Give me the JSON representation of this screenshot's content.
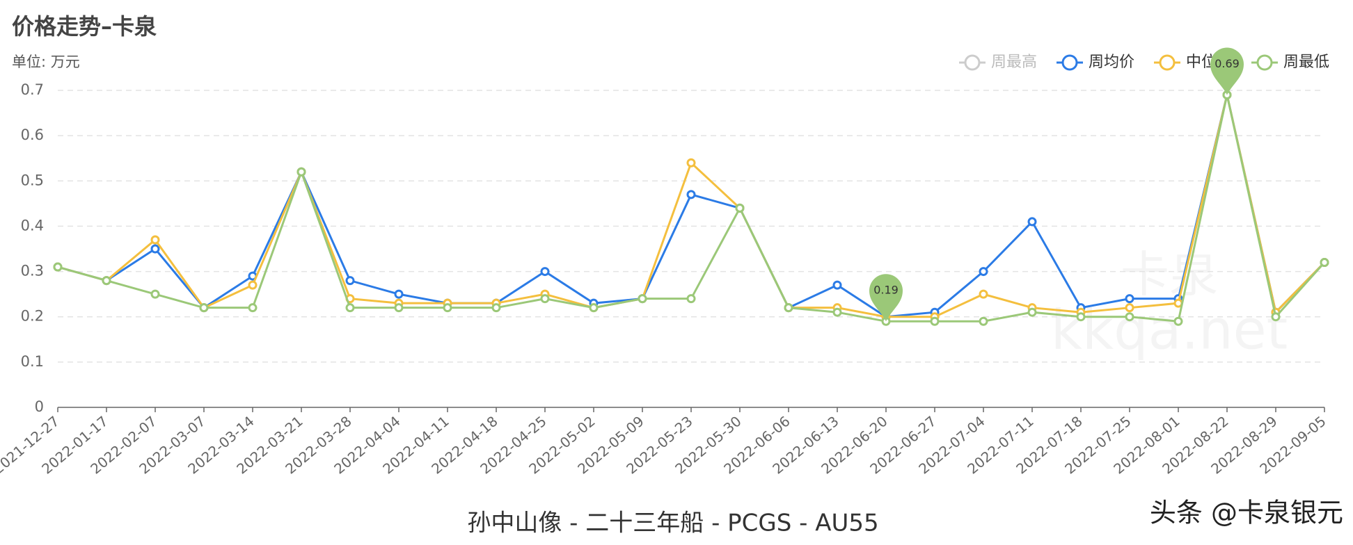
{
  "chart_data": {
    "type": "line",
    "title": "价格走势–卡泉",
    "y_axis_label": "单位: 万元",
    "caption": "孙中山像 - 二十三年船 - PCGS - AU55",
    "watermark": "头条 @卡泉银元",
    "site_watermark": [
      "卡泉",
      "kkqa.net"
    ],
    "categories": [
      "2021-12-27",
      "2022-01-17",
      "2022-02-07",
      "2022-03-07",
      "2022-03-14",
      "2022-03-21",
      "2022-03-28",
      "2022-04-04",
      "2022-04-11",
      "2022-04-18",
      "2022-04-25",
      "2022-05-02",
      "2022-05-09",
      "2022-05-23",
      "2022-05-30",
      "2022-06-06",
      "2022-06-13",
      "2022-06-20",
      "2022-06-27",
      "2022-07-04",
      "2022-07-11",
      "2022-07-18",
      "2022-07-25",
      "2022-08-01",
      "2022-08-22",
      "2022-08-29",
      "2022-09-05"
    ],
    "series": [
      {
        "name": "周最高",
        "color": "#cccccc",
        "visible": false
      },
      {
        "name": "周均价",
        "color": "#2b7be6",
        "values": [
          0.31,
          0.28,
          0.35,
          0.22,
          0.29,
          0.52,
          0.28,
          0.25,
          0.23,
          0.23,
          0.3,
          0.23,
          0.24,
          0.47,
          0.44,
          0.22,
          0.27,
          0.2,
          0.21,
          0.3,
          0.41,
          0.22,
          0.24,
          0.24,
          0.69,
          0.21,
          0.32
        ]
      },
      {
        "name": "中位数",
        "color": "#f4bf3e",
        "values": [
          0.31,
          0.28,
          0.37,
          0.22,
          0.27,
          0.52,
          0.24,
          0.23,
          0.23,
          0.23,
          0.25,
          0.22,
          0.24,
          0.54,
          0.44,
          0.22,
          0.22,
          0.2,
          0.2,
          0.25,
          0.22,
          0.21,
          0.22,
          0.23,
          0.69,
          0.21,
          0.32
        ]
      },
      {
        "name": "周最低",
        "color": "#9bc878",
        "values": [
          0.31,
          0.28,
          0.25,
          0.22,
          0.22,
          0.52,
          0.22,
          0.22,
          0.22,
          0.22,
          0.24,
          0.22,
          0.24,
          0.24,
          0.44,
          0.22,
          0.21,
          0.19,
          0.19,
          0.19,
          0.21,
          0.2,
          0.2,
          0.19,
          0.69,
          0.2,
          0.32
        ],
        "mark_points": [
          "max",
          "min"
        ]
      }
    ],
    "ylim": [
      0,
      0.7
    ],
    "yticks": [
      0,
      0.1,
      0.2,
      0.3,
      0.4,
      0.5,
      0.6,
      0.7
    ],
    "grid": true
  }
}
